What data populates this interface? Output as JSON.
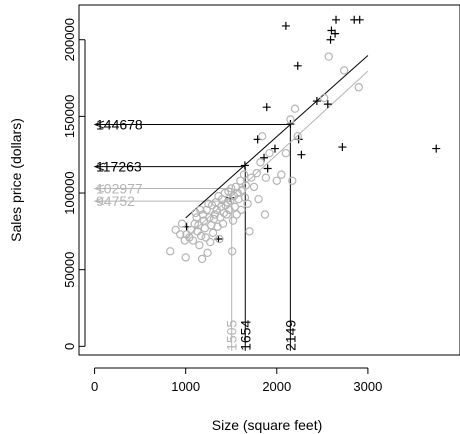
{
  "chart_data": {
    "type": "scatter",
    "xlabel": "Size (square feet)",
    "ylabel": "Sales price (dollars)",
    "xlim": [
      -160,
      4000
    ],
    "ylim": [
      -5000,
      222000
    ],
    "x_ticks": [
      0,
      1000,
      2000,
      3000
    ],
    "y_ticks": [
      0,
      50000,
      100000,
      150000,
      200000
    ],
    "grid": false,
    "colors": {
      "black": "#000000",
      "gray": "#b4b4b4"
    },
    "series": [
      {
        "marker": "plus",
        "color": "#000000",
        "points": [
          [
            1010,
            78000
          ],
          [
            1360,
            70000
          ],
          [
            1490,
            97000
          ],
          [
            1650,
            118000
          ],
          [
            1790,
            135000
          ],
          [
            1860,
            123000
          ],
          [
            1900,
            116000
          ],
          [
            1890,
            156000
          ],
          [
            1980,
            129000
          ],
          [
            2100,
            209000
          ],
          [
            2150,
            145000
          ],
          [
            2230,
            183000
          ],
          [
            2240,
            135000
          ],
          [
            2270,
            125000
          ],
          [
            2440,
            160000
          ],
          [
            2560,
            158000
          ],
          [
            2590,
            200000
          ],
          [
            2600,
            206000
          ],
          [
            2640,
            204000
          ],
          [
            2650,
            213000
          ],
          [
            2720,
            130000
          ],
          [
            2850,
            213000
          ],
          [
            2910,
            213000
          ],
          [
            3750,
            129000
          ]
        ]
      },
      {
        "marker": "circle",
        "color": "#b4b4b4",
        "points": [
          [
            830,
            62000
          ],
          [
            890,
            76000
          ],
          [
            940,
            73000
          ],
          [
            960,
            80000
          ],
          [
            990,
            69000
          ],
          [
            1000,
            58000
          ],
          [
            1010,
            73000
          ],
          [
            1040,
            71000
          ],
          [
            1060,
            76000
          ],
          [
            1080,
            69000
          ],
          [
            1100,
            80000
          ],
          [
            1110,
            87000
          ],
          [
            1120,
            84000
          ],
          [
            1130,
            75000
          ],
          [
            1140,
            79000
          ],
          [
            1150,
            66000
          ],
          [
            1160,
            89000
          ],
          [
            1170,
            72000
          ],
          [
            1180,
            57000
          ],
          [
            1190,
            86000
          ],
          [
            1200,
            82000
          ],
          [
            1210,
            77000
          ],
          [
            1220,
            71000
          ],
          [
            1230,
            89000
          ],
          [
            1240,
            61000
          ],
          [
            1250,
            93000
          ],
          [
            1260,
            84000
          ],
          [
            1270,
            68000
          ],
          [
            1280,
            79000
          ],
          [
            1290,
            92000
          ],
          [
            1300,
            74000
          ],
          [
            1310,
            83000
          ],
          [
            1320,
            86000
          ],
          [
            1330,
            94000
          ],
          [
            1340,
            89000
          ],
          [
            1350,
            78000
          ],
          [
            1360,
            98000
          ],
          [
            1370,
            70000
          ],
          [
            1380,
            84000
          ],
          [
            1390,
            91000
          ],
          [
            1400,
            96000
          ],
          [
            1410,
            80000
          ],
          [
            1420,
            87000
          ],
          [
            1430,
            100000
          ],
          [
            1440,
            92000
          ],
          [
            1450,
            86000
          ],
          [
            1460,
            94000
          ],
          [
            1470,
            101000
          ],
          [
            1480,
            89000
          ],
          [
            1490,
            95000
          ],
          [
            1500,
            103000
          ],
          [
            1510,
            62000
          ],
          [
            1520,
            82000
          ],
          [
            1530,
            98000
          ],
          [
            1540,
            91000
          ],
          [
            1550,
            104000
          ],
          [
            1560,
            86000
          ],
          [
            1570,
            100000
          ],
          [
            1580,
            96000
          ],
          [
            1600,
            108000
          ],
          [
            1610,
            89000
          ],
          [
            1620,
            102000
          ],
          [
            1640,
            112000
          ],
          [
            1650,
            97000
          ],
          [
            1660,
            105000
          ],
          [
            1680,
            93000
          ],
          [
            1700,
            75000
          ],
          [
            1720,
            110000
          ],
          [
            1750,
            104000
          ],
          [
            1780,
            113000
          ],
          [
            1800,
            96000
          ],
          [
            1820,
            120000
          ],
          [
            1840,
            137000
          ],
          [
            1870,
            86000
          ],
          [
            1880,
            110000
          ],
          [
            1920,
            126000
          ],
          [
            2000,
            108000
          ],
          [
            2050,
            112000
          ],
          [
            2100,
            126000
          ],
          [
            2150,
            148000
          ],
          [
            2170,
            108000
          ],
          [
            2200,
            155000
          ],
          [
            2230,
            137000
          ],
          [
            2520,
            162000
          ],
          [
            2570,
            189000
          ],
          [
            2740,
            180000
          ],
          [
            2900,
            169000
          ]
        ]
      }
    ],
    "regression_lines": [
      {
        "color": "#000000",
        "intercept": 30870,
        "slope": 52.96,
        "x_range": [
          1000,
          3000
        ]
      },
      {
        "color": "#b4b4b4",
        "intercept": 16000,
        "slope": 54.5,
        "x_range": [
          1000,
          3000
        ]
      }
    ],
    "annotations": [
      {
        "color": "#b4b4b4",
        "x": 1505,
        "y": 102977,
        "x_label": "1505",
        "y_label": "102977"
      },
      {
        "color": "#b4b4b4",
        "x": 1505,
        "y": 94752,
        "x_label": "",
        "y_label": "94752"
      },
      {
        "color": "#000000",
        "x": 1654,
        "y": 117263,
        "x_label": "1654",
        "y_label": "117263"
      },
      {
        "color": "#000000",
        "x": 2149,
        "y": 144678,
        "x_label": "2149",
        "y_label": "144678"
      }
    ]
  }
}
